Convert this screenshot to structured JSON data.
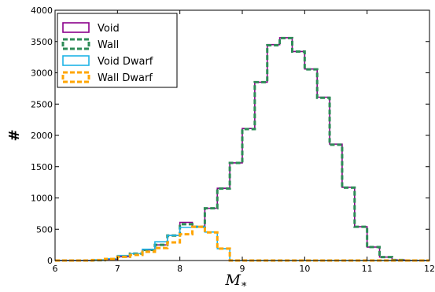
{
  "chart_data": {
    "type": "histogram",
    "xlabel": "M",
    "xlabel_sub": "*",
    "ylabel": "#",
    "xlim": [
      6,
      12
    ],
    "ylim": [
      0,
      4000
    ],
    "xticks": [
      6,
      7,
      8,
      9,
      10,
      11,
      12
    ],
    "yticks": [
      0,
      500,
      1000,
      1500,
      2000,
      2500,
      3000,
      3500,
      4000
    ],
    "bin_edges": [
      6.0,
      6.2,
      6.4,
      6.6,
      6.8,
      7.0,
      7.2,
      7.4,
      7.6,
      7.8,
      8.0,
      8.2,
      8.4,
      8.6,
      8.8,
      9.0,
      9.2,
      9.4,
      9.6,
      9.8,
      10.0,
      10.2,
      10.4,
      10.6,
      10.8,
      11.0,
      11.2,
      11.4,
      11.6,
      11.8,
      12.0
    ],
    "legend_position": "top-left",
    "grid": false,
    "series": [
      {
        "name": "Void",
        "color": "#8b008b",
        "line_style": "solid",
        "values": [
          0,
          0,
          0,
          5,
          20,
          60,
          110,
          170,
          250,
          400,
          610,
          540,
          835,
          1155,
          1560,
          2110,
          2850,
          3450,
          3560,
          3340,
          3060,
          2610,
          1860,
          1170,
          540,
          215,
          55,
          8,
          0,
          0
        ]
      },
      {
        "name": "Wall",
        "color": "#2e8b57",
        "line_style": "dashed",
        "values": [
          0,
          0,
          0,
          5,
          20,
          60,
          110,
          170,
          250,
          400,
          580,
          540,
          835,
          1150,
          1560,
          2100,
          2850,
          3440,
          3555,
          3340,
          3055,
          2600,
          1850,
          1165,
          540,
          215,
          55,
          8,
          0,
          0
        ]
      },
      {
        "name": "Void Dwarf",
        "color": "#1eb3e6",
        "line_style": "solid",
        "values": [
          0,
          0,
          0,
          10,
          30,
          80,
          110,
          180,
          300,
          400,
          530,
          540,
          455,
          190,
          0,
          0,
          0,
          0,
          0,
          0,
          0,
          0,
          0,
          0,
          0,
          0,
          0,
          0,
          0,
          0
        ]
      },
      {
        "name": "Wall Dwarf",
        "color": "#ffa500",
        "line_style": "dashed",
        "values": [
          0,
          0,
          0,
          8,
          25,
          60,
          90,
          140,
          200,
          290,
          420,
          540,
          450,
          190,
          0,
          0,
          0,
          0,
          0,
          0,
          0,
          0,
          0,
          0,
          0,
          0,
          0,
          0,
          0,
          0
        ]
      }
    ]
  }
}
